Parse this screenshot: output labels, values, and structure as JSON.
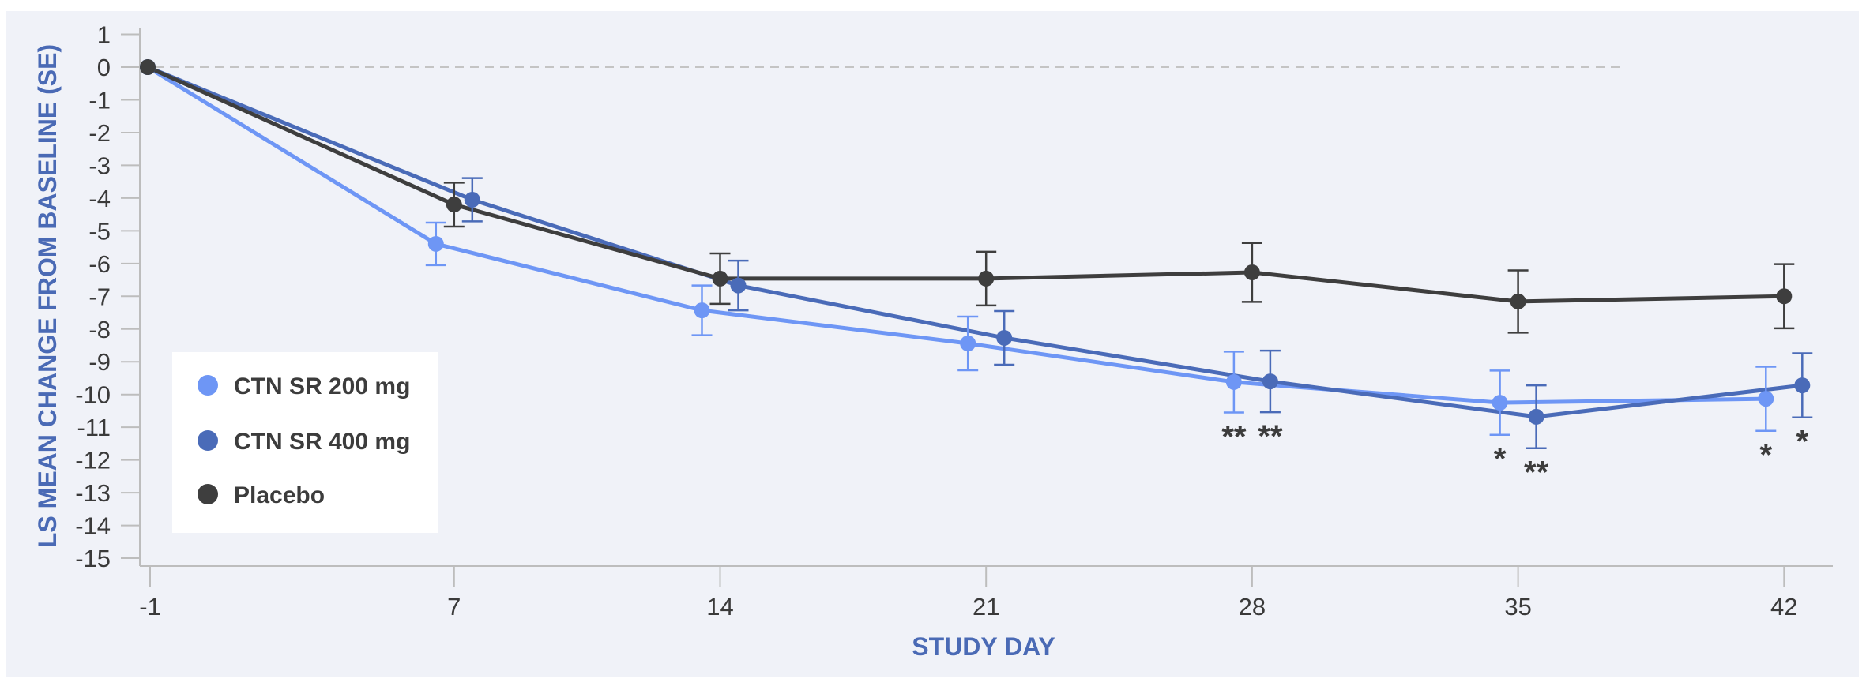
{
  "chart_data": {
    "type": "line",
    "title": "",
    "xlabel": "STUDY DAY",
    "ylabel": "LS MEAN CHANGE FROM BASELINE (SE)",
    "x": [
      -1,
      7,
      14,
      21,
      28,
      35,
      42
    ],
    "x_tick_labels": [
      "-1",
      "7",
      "14",
      "21",
      "28",
      "35",
      "42"
    ],
    "y_ticks": [
      1,
      0,
      -1,
      -2,
      -3,
      -4,
      -5,
      -6,
      -7,
      -8,
      -9,
      -10,
      -11,
      -12,
      -13,
      -14,
      -15
    ],
    "y_tick_labels": [
      "1",
      "0",
      "-1",
      "-2",
      "-3",
      "-4",
      "-5",
      "-6",
      "-7",
      "-8",
      "-9",
      "-10",
      "-11",
      "-12",
      "-13",
      "-14",
      "-15"
    ],
    "ylim": [
      -15,
      1
    ],
    "xlim": [
      -1,
      42
    ],
    "grid": false,
    "reference_line": {
      "y": 0,
      "style": "dashed"
    },
    "legend_position": "bottom-left",
    "series": [
      {
        "name": "CTN SR 200 mg",
        "color": "#6e96f5",
        "values": [
          0,
          -5.4,
          -7.43,
          -8.44,
          -9.62,
          -10.25,
          -10.13
        ],
        "se": [
          0,
          0.65,
          0.76,
          0.82,
          0.93,
          0.98,
          0.98
        ],
        "significance": [
          "",
          "",
          "",
          "",
          "**",
          "*",
          "*"
        ]
      },
      {
        "name": "CTN SR 400 mg",
        "color": "#4a6bb8",
        "values": [
          0,
          -4.05,
          -6.67,
          -8.27,
          -9.6,
          -10.68,
          -9.72
        ],
        "se": [
          0,
          0.66,
          0.76,
          0.82,
          0.94,
          0.96,
          0.98
        ],
        "significance": [
          "",
          "",
          "",
          "",
          "**",
          "**",
          "*"
        ]
      },
      {
        "name": "Placebo",
        "color": "#3e3e3e",
        "values": [
          0,
          -4.2,
          -6.46,
          -6.46,
          -6.27,
          -7.16,
          -7.0
        ],
        "se": [
          0,
          0.67,
          0.77,
          0.82,
          0.9,
          0.95,
          0.98
        ],
        "significance": [
          "",
          "",
          "",
          "",
          "",
          "",
          ""
        ]
      }
    ]
  }
}
